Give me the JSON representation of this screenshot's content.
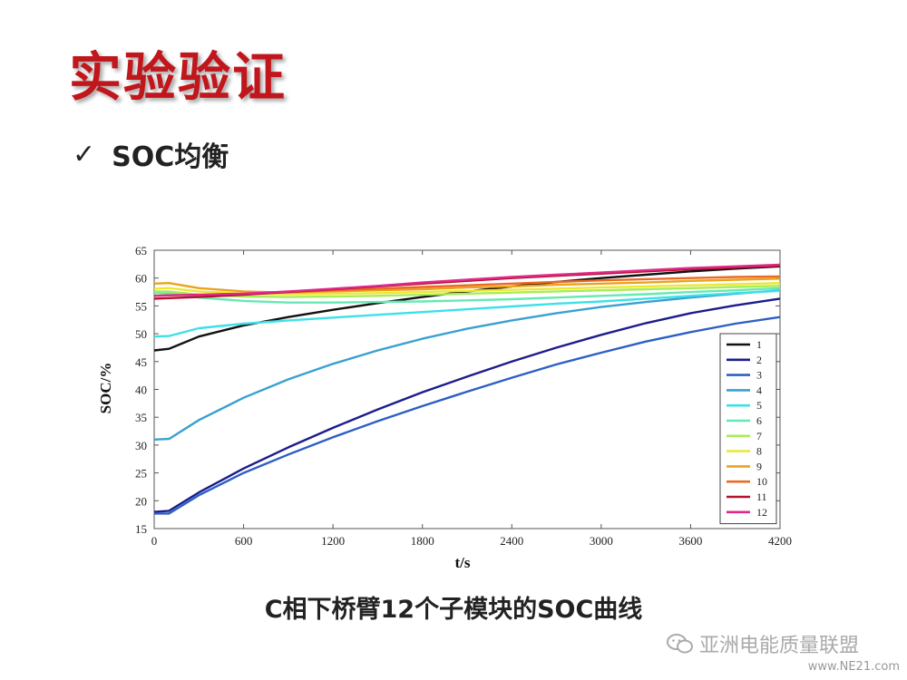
{
  "slide": {
    "title": "实验验证",
    "bullet_check": "✓",
    "bullet_text": "SOC均衡",
    "caption": "C相下桥臂12个子模块的SOC曲线",
    "watermark": "亚洲电能质量联盟",
    "site_mark": "www.NE21.com",
    "watermark_icon": "wechat-icon"
  },
  "chart_data": {
    "type": "line",
    "xlabel": "t/s",
    "ylabel": "SOC/%",
    "xlim": [
      0,
      4200
    ],
    "ylim": [
      15,
      65
    ],
    "xticks": [
      0,
      600,
      1200,
      1800,
      2400,
      3000,
      3600,
      4200
    ],
    "yticks": [
      15,
      20,
      25,
      30,
      35,
      40,
      45,
      50,
      55,
      60,
      65
    ],
    "grid": false,
    "legend_position": "right",
    "series": [
      {
        "name": "1",
        "color": "#111111",
        "x": [
          0,
          100,
          300,
          600,
          900,
          1200,
          1500,
          1800,
          2100,
          2400,
          2700,
          3000,
          3300,
          3600,
          3900,
          4200
        ],
        "y": [
          47,
          47.3,
          49.5,
          51.5,
          53,
          54.3,
          55.5,
          56.6,
          57.6,
          58.5,
          59.3,
          60,
          60.6,
          61.2,
          61.7,
          62.1
        ]
      },
      {
        "name": "2",
        "color": "#1c1c8c",
        "x": [
          0,
          100,
          300,
          600,
          900,
          1200,
          1500,
          1800,
          2100,
          2400,
          2700,
          3000,
          3300,
          3600,
          3900,
          4200
        ],
        "y": [
          18,
          18.2,
          21.5,
          25.8,
          29.6,
          33.1,
          36.4,
          39.5,
          42.3,
          45,
          47.5,
          49.8,
          51.9,
          53.7,
          55.1,
          56.3
        ]
      },
      {
        "name": "3",
        "color": "#2d5fc4",
        "x": [
          0,
          100,
          300,
          600,
          900,
          1200,
          1500,
          1800,
          2100,
          2400,
          2700,
          3000,
          3300,
          3600,
          3900,
          4200
        ],
        "y": [
          17.7,
          17.7,
          21,
          25,
          28.3,
          31.4,
          34.3,
          37,
          39.6,
          42.1,
          44.5,
          46.6,
          48.6,
          50.3,
          51.8,
          53
        ]
      },
      {
        "name": "4",
        "color": "#3aa0d0",
        "x": [
          0,
          100,
          300,
          600,
          900,
          1200,
          1500,
          1800,
          2100,
          2400,
          2700,
          3000,
          3300,
          3600,
          3900,
          4200
        ],
        "y": [
          31,
          31.1,
          34.5,
          38.5,
          41.8,
          44.6,
          47,
          49.1,
          50.9,
          52.4,
          53.7,
          54.8,
          55.7,
          56.5,
          57.2,
          57.8
        ]
      },
      {
        "name": "5",
        "color": "#3ee0e8",
        "x": [
          0,
          100,
          300,
          600,
          900,
          1200,
          1500,
          1800,
          2100,
          2400,
          2700,
          3000,
          3300,
          3600,
          3900,
          4200
        ],
        "y": [
          49.5,
          49.6,
          51,
          51.8,
          52.4,
          52.9,
          53.4,
          53.9,
          54.4,
          54.9,
          55.4,
          55.8,
          56.3,
          56.8,
          57.3,
          57.7
        ]
      },
      {
        "name": "6",
        "color": "#66e8b4",
        "x": [
          0,
          100,
          300,
          600,
          900,
          1200,
          1500,
          1800,
          2100,
          2400,
          2700,
          3000,
          3300,
          3600,
          3900,
          4200
        ],
        "y": [
          57.3,
          57.3,
          56.5,
          55.9,
          55.6,
          55.6,
          55.7,
          55.8,
          56,
          56.2,
          56.5,
          56.8,
          57.1,
          57.5,
          57.8,
          58.2
        ]
      },
      {
        "name": "7",
        "color": "#a8ec58",
        "x": [
          0,
          100,
          300,
          600,
          900,
          1200,
          1500,
          1800,
          2100,
          2400,
          2700,
          3000,
          3300,
          3600,
          3900,
          4200
        ],
        "y": [
          57.6,
          57.6,
          57,
          56.7,
          56.6,
          56.7,
          56.8,
          57,
          57.2,
          57.4,
          57.6,
          57.8,
          58,
          58.2,
          58.4,
          58.6
        ]
      },
      {
        "name": "8",
        "color": "#ece832",
        "x": [
          0,
          100,
          300,
          600,
          900,
          1200,
          1500,
          1800,
          2100,
          2400,
          2700,
          3000,
          3300,
          3600,
          3900,
          4200
        ],
        "y": [
          58.1,
          58.2,
          57.6,
          57.2,
          57.1,
          57.2,
          57.3,
          57.5,
          57.7,
          57.9,
          58.1,
          58.3,
          58.5,
          58.7,
          58.9,
          59.1
        ]
      },
      {
        "name": "9",
        "color": "#e8a41c",
        "x": [
          0,
          100,
          300,
          600,
          900,
          1200,
          1500,
          1800,
          2100,
          2400,
          2700,
          3000,
          3300,
          3600,
          3900,
          4200
        ],
        "y": [
          59,
          59.1,
          58.2,
          57.6,
          57.4,
          57.6,
          57.8,
          58,
          58.3,
          58.5,
          58.8,
          59,
          59.2,
          59.5,
          59.7,
          59.9
        ]
      },
      {
        "name": "10",
        "color": "#ec6a26",
        "x": [
          0,
          100,
          300,
          600,
          900,
          1200,
          1500,
          1800,
          2100,
          2400,
          2700,
          3000,
          3300,
          3600,
          3900,
          4200
        ],
        "y": [
          56.8,
          56.9,
          57,
          57.2,
          57.5,
          57.8,
          58.1,
          58.4,
          58.7,
          59,
          59.3,
          59.6,
          59.8,
          60,
          60.2,
          60.3
        ]
      },
      {
        "name": "11",
        "color": "#b3122a",
        "x": [
          0,
          100,
          300,
          600,
          900,
          1200,
          1500,
          1800,
          2100,
          2400,
          2700,
          3000,
          3300,
          3600,
          3900,
          4200
        ],
        "y": [
          56.3,
          56.4,
          56.6,
          57,
          57.5,
          58,
          58.5,
          59,
          59.5,
          60,
          60.4,
          60.8,
          61.2,
          61.6,
          61.9,
          62.2
        ]
      },
      {
        "name": "12",
        "color": "#e0288a",
        "x": [
          0,
          100,
          300,
          600,
          900,
          1200,
          1500,
          1800,
          2100,
          2400,
          2700,
          3000,
          3300,
          3600,
          3900,
          4200
        ],
        "y": [
          56.8,
          56.9,
          57,
          57.2,
          57.6,
          58.1,
          58.6,
          59.2,
          59.7,
          60.2,
          60.6,
          61,
          61.4,
          61.8,
          62.1,
          62.4
        ]
      }
    ]
  }
}
